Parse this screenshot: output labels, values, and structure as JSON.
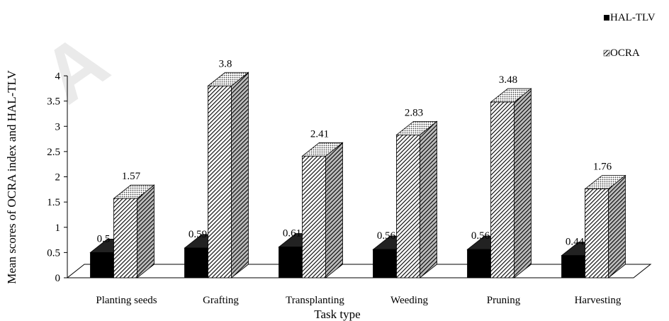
{
  "watermark_text": "A",
  "chart_data": {
    "type": "bar",
    "title": "",
    "xlabel": "Task type",
    "ylabel": "Mean scores of OCRA index and HAL-TLV",
    "ylim": [
      0,
      4
    ],
    "yticks": [
      "0",
      "0.5",
      "1",
      "1.5",
      "2",
      "2.5",
      "3",
      "3.5",
      "4"
    ],
    "categories": [
      "Planting seeds",
      "Grafting",
      "Transplanting",
      "Weeding",
      "Pruning",
      "Harvesting"
    ],
    "series": [
      {
        "name": "HAL-TLV",
        "values": [
          0.5,
          0.59,
          0.61,
          0.56,
          0.56,
          0.44
        ],
        "labels": [
          "0.5",
          "0.59",
          "0.61",
          "0.56",
          "0.56",
          "0.44"
        ],
        "color": "#000000",
        "pattern": "solid"
      },
      {
        "name": "OCRA",
        "values": [
          1.57,
          3.8,
          2.41,
          2.83,
          3.48,
          1.76
        ],
        "labels": [
          "1.57",
          "3.8",
          "2.41",
          "2.83",
          "3.48",
          "1.76"
        ],
        "color": "#000000",
        "pattern": "diagonal-hatch"
      }
    ],
    "grid": false,
    "legend_position": "top-right",
    "style": "3d-columns"
  }
}
